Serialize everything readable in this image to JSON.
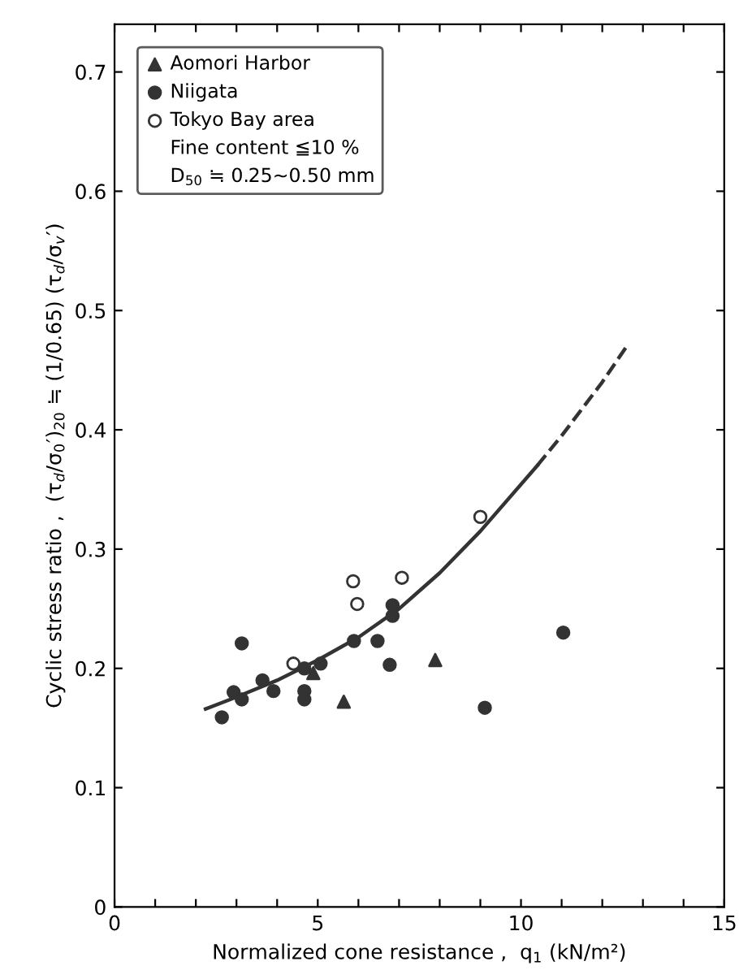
{
  "chart_data": {
    "type": "scatter",
    "xlabel": "Normalized cone resistance ,  q$_{1}$ (kN/m²)",
    "ylabel": "Cyclic stress ratio ,  (τ$_{d}$/σ$_{0}$′)$_{20}$ ≒ (1/0.65) (τ$_{d}$/σ$_{v}$′)",
    "xlim": [
      0,
      15
    ],
    "ylim": [
      0,
      0.74
    ],
    "xticks": [
      0,
      {
        "value": 1,
        "label": null
      },
      {
        "value": 2,
        "label": null
      },
      {
        "value": 3,
        "label": null
      },
      {
        "value": 4,
        "label": null
      },
      5,
      {
        "value": 6,
        "label": null
      },
      {
        "value": 7,
        "label": null
      },
      {
        "value": 8,
        "label": null
      },
      {
        "value": 9,
        "label": null
      },
      10,
      {
        "value": 11,
        "label": null
      },
      {
        "value": 12,
        "label": null
      },
      {
        "value": 13,
        "label": null
      },
      {
        "value": 14,
        "label": null
      },
      15
    ],
    "yticks": [
      0,
      0.1,
      0.2,
      0.3,
      0.4,
      0.5,
      0.6,
      0.7
    ],
    "legend": "top left",
    "grid": false,
    "annotations": [
      "Fine content ≦10 %",
      "D$_{50}$ ≒ 0.25~0.50 mm"
    ],
    "series": [
      {
        "name": "Aomori Harbor",
        "marker": "triangle",
        "color": "#333333",
        "x": [
          4.89,
          5.64,
          7.89
        ],
        "values": [
          0.196,
          0.172,
          0.207
        ]
      },
      {
        "name": "Niigata",
        "marker": "circle",
        "color": "#333333",
        "x": [
          2.64,
          3.13,
          2.93,
          3.13,
          3.64,
          3.91,
          4.67,
          4.67,
          4.67,
          5.07,
          5.89,
          6.47,
          6.77,
          6.84,
          6.84,
          9.11,
          11.04
        ],
        "values": [
          0.159,
          0.221,
          0.18,
          0.174,
          0.19,
          0.181,
          0.181,
          0.174,
          0.2,
          0.204,
          0.223,
          0.223,
          0.203,
          0.253,
          0.244,
          0.167,
          0.23
        ]
      },
      {
        "name": "Tokyo Bay area",
        "marker": "circle",
        "color": "#ffffff",
        "x": [
          4.4,
          5.87,
          5.97,
          7.07,
          9.0
        ],
        "values": [
          0.204,
          0.273,
          0.254,
          0.276,
          0.327
        ]
      },
      {
        "type": "line",
        "line_style": "solid",
        "color": "#333333",
        "x": [
          2.24,
          3,
          4,
          5,
          6,
          7,
          8,
          9,
          10.4
        ],
        "values": [
          0.166,
          0.176,
          0.19,
          0.207,
          0.226,
          0.25,
          0.28,
          0.315,
          0.37
        ]
      },
      {
        "type": "line",
        "line_style": "dashed",
        "color": "#333333",
        "x": [
          10.4,
          11,
          12,
          12.6
        ],
        "values": [
          0.37,
          0.395,
          0.44,
          0.47
        ]
      }
    ]
  }
}
